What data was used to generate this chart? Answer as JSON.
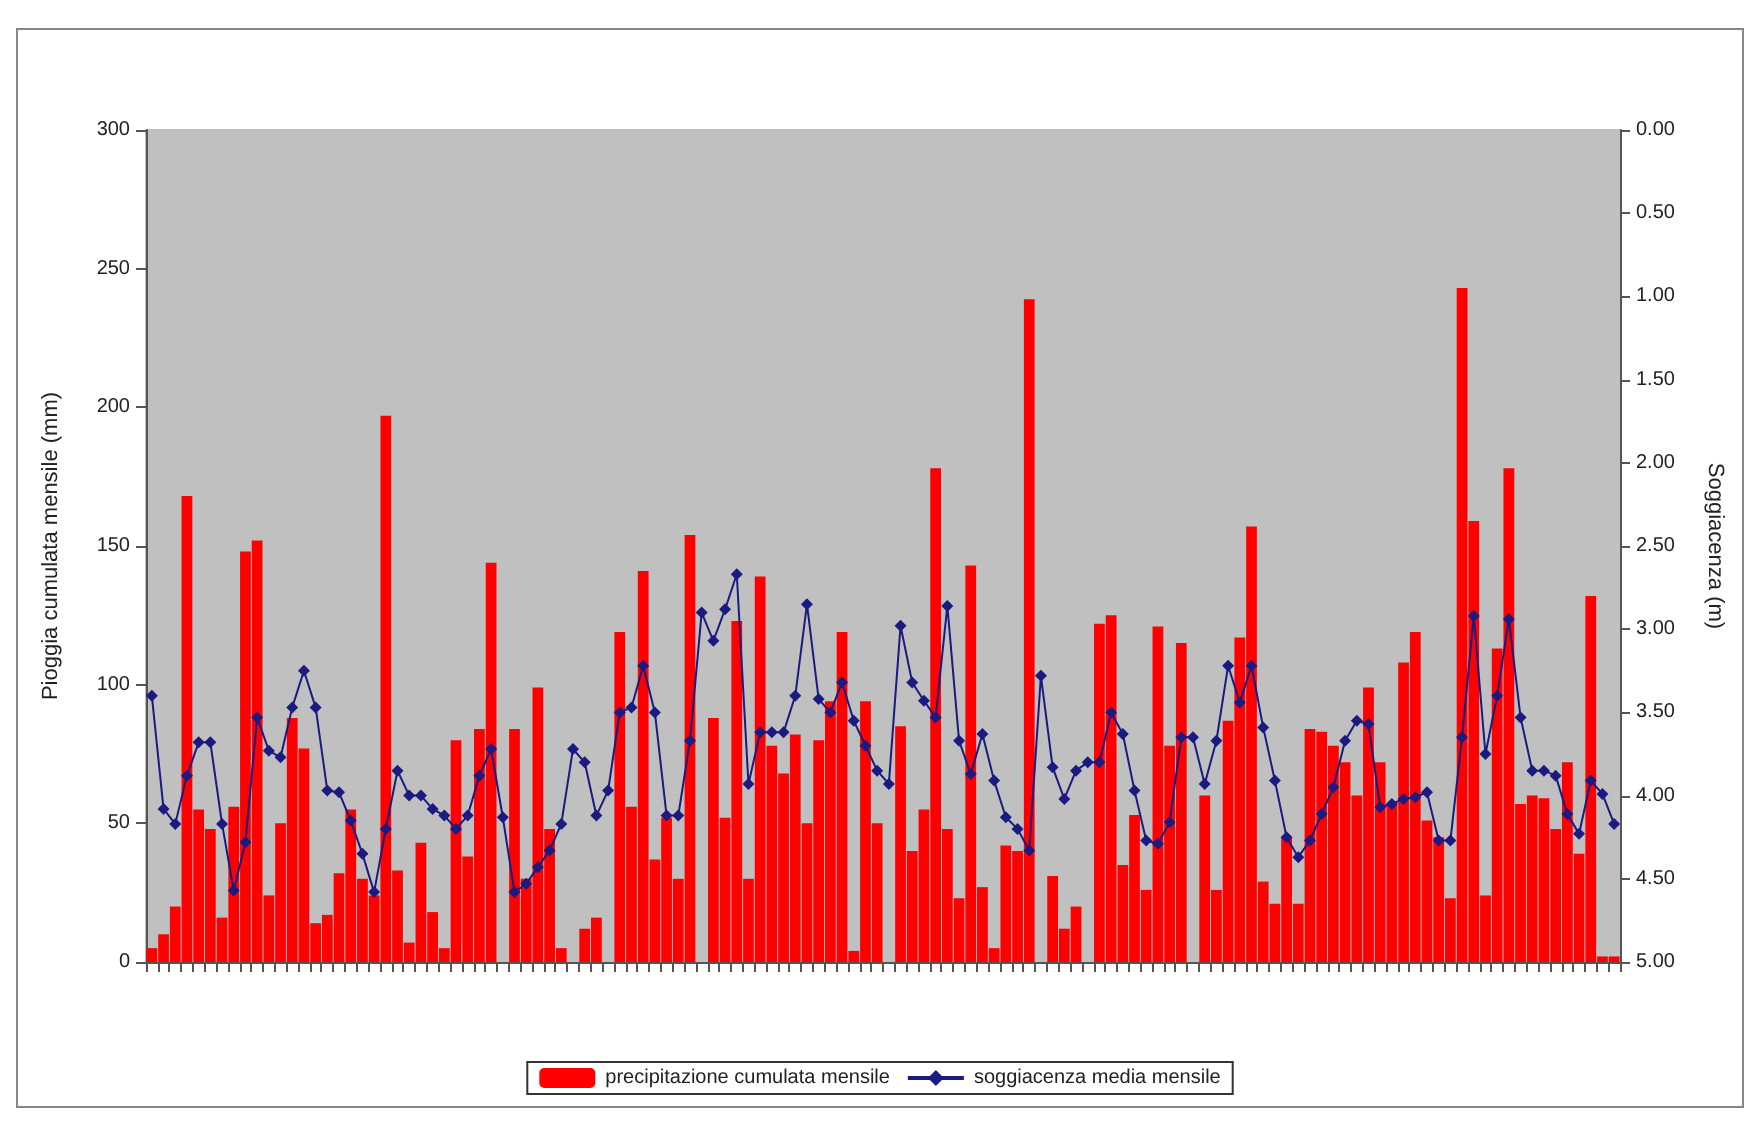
{
  "chart_data": {
    "type": "bar",
    "ylabel": "Pioggia cumulata mensile (mm)",
    "y2label": "Soggiacenza (m)",
    "categories": [
      null,
      null,
      null,
      null,
      null,
      null,
      null,
      null,
      null,
      null,
      null,
      null,
      null,
      null,
      null,
      null,
      null,
      null,
      null,
      null,
      null,
      null,
      null,
      null,
      null,
      null,
      null,
      null,
      null,
      null,
      null,
      null,
      null,
      null,
      null,
      null,
      null,
      null,
      null,
      null,
      null,
      null,
      null,
      null,
      null,
      null,
      null,
      null,
      null,
      null,
      null,
      null,
      null,
      null,
      null,
      null,
      null,
      null,
      null,
      null,
      null,
      null,
      null,
      null,
      null,
      null,
      null,
      null,
      null,
      null,
      null,
      null,
      null,
      null,
      null,
      null,
      null,
      null,
      null,
      null,
      null,
      null,
      null,
      null,
      null,
      null,
      null,
      null,
      null,
      null,
      null,
      null,
      null,
      null,
      null,
      null,
      null,
      null,
      null,
      null,
      null,
      null,
      null,
      null,
      null,
      null,
      null,
      null,
      null,
      null,
      null,
      null,
      null,
      null,
      null,
      null,
      null,
      null,
      null,
      null,
      null,
      null,
      null,
      null,
      null,
      null
    ],
    "series": [
      {
        "name": "precipitazione cumulata mensile",
        "color": "#ff0000",
        "values": [
          5,
          10,
          20,
          168,
          55,
          48,
          16,
          56,
          148,
          152,
          24,
          50,
          88,
          77,
          14,
          17,
          32,
          55,
          30,
          24,
          197,
          33,
          7,
          43,
          18,
          5,
          80,
          38,
          84,
          144,
          0,
          84,
          30,
          99,
          48,
          5,
          0,
          12,
          16,
          0,
          119,
          56,
          141,
          37,
          52,
          30,
          154,
          0,
          88,
          52,
          123,
          30,
          139,
          78,
          68,
          82,
          50,
          80,
          94,
          119,
          4,
          94,
          50,
          0,
          85,
          40,
          55,
          178,
          48,
          23,
          143,
          27,
          5,
          42,
          40,
          239,
          0,
          31,
          12,
          20,
          0,
          122,
          125,
          35,
          53,
          26,
          121,
          78,
          115,
          0,
          60,
          26,
          87,
          117,
          157,
          29,
          21,
          45,
          21,
          84,
          83,
          78,
          72,
          60,
          99,
          72,
          57,
          108,
          119,
          51,
          45,
          23,
          243,
          159,
          24,
          113,
          178,
          57,
          60,
          59,
          48,
          72,
          39,
          132,
          2,
          2
        ]
      },
      {
        "name": "soggiacenza media mensile",
        "type": "line",
        "axis": "y2",
        "color": "#1a1a80",
        "marker": "diamond",
        "values": [
          3.4,
          4.08,
          4.17,
          3.88,
          3.68,
          3.68,
          4.17,
          4.57,
          4.28,
          3.53,
          3.73,
          3.77,
          3.47,
          3.25,
          3.47,
          3.97,
          3.98,
          4.15,
          4.35,
          4.58,
          4.2,
          3.85,
          4.0,
          4.0,
          4.08,
          4.12,
          4.2,
          4.12,
          3.88,
          3.72,
          4.13,
          4.58,
          4.53,
          4.43,
          4.33,
          4.17,
          3.72,
          3.8,
          4.12,
          3.97,
          3.5,
          3.47,
          3.22,
          3.5,
          4.12,
          4.12,
          3.67,
          2.9,
          3.07,
          2.88,
          2.67,
          3.93,
          3.62,
          3.62,
          3.62,
          3.4,
          2.85,
          3.42,
          3.5,
          3.32,
          3.55,
          3.7,
          3.85,
          3.93,
          2.98,
          3.32,
          3.43,
          3.53,
          2.86,
          3.67,
          3.87,
          3.63,
          3.91,
          4.13,
          4.2,
          4.33,
          3.28,
          3.83,
          4.02,
          3.85,
          3.8,
          3.8,
          3.5,
          3.63,
          3.97,
          4.27,
          4.29,
          4.16,
          3.65,
          3.65,
          3.93,
          3.67,
          3.22,
          3.44,
          3.22,
          3.59,
          3.91,
          4.25,
          4.37,
          4.27,
          4.11,
          3.95,
          3.67,
          3.55,
          3.57,
          4.07,
          4.05,
          4.02,
          4.01,
          3.98,
          4.27,
          4.27,
          3.65,
          2.92,
          3.75,
          3.4,
          2.94,
          3.53,
          3.85,
          3.85,
          3.88,
          4.11,
          4.23,
          3.91,
          3.99,
          4.17
        ]
      }
    ],
    "ylim": [
      0,
      300
    ],
    "yticks": [
      0,
      50,
      100,
      150,
      200,
      250,
      300
    ],
    "y2lim": [
      5,
      0
    ],
    "y2ticks": [
      {
        "value": 0,
        "label": "0.00"
      },
      {
        "value": 0.5,
        "label": "0.50"
      },
      {
        "value": 1,
        "label": "1.00"
      },
      {
        "value": 1.5,
        "label": "1.50"
      },
      {
        "value": 2,
        "label": "2.00"
      },
      {
        "value": 2.5,
        "label": "2.50"
      },
      {
        "value": 3,
        "label": "3.00"
      },
      {
        "value": 3.5,
        "label": "3.50"
      },
      {
        "value": 4,
        "label": "4.00"
      },
      {
        "value": 4.5,
        "label": "4.50"
      },
      {
        "value": 5,
        "label": "5.00"
      }
    ],
    "grid": false,
    "legend": "bottom"
  }
}
